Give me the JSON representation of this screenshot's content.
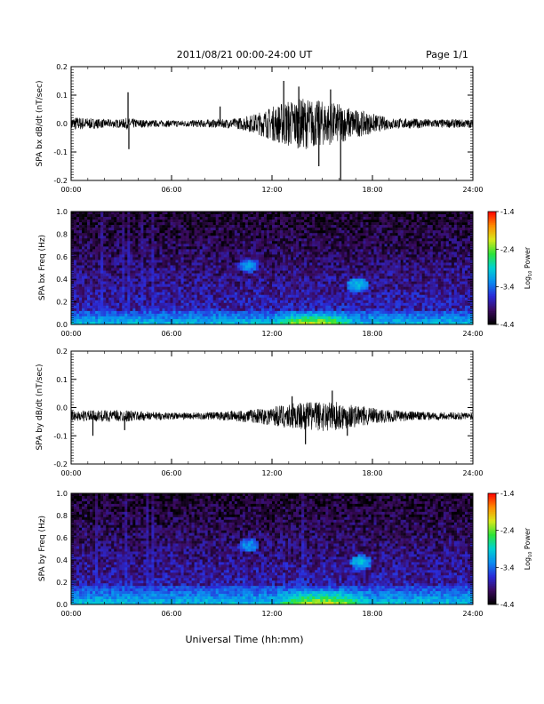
{
  "header": {
    "title": "2011/08/21  00:00-24:00 UT",
    "page": "Page 1/1"
  },
  "footer": {
    "xlabel": "Universal Time (hh:mm)"
  },
  "colors": {
    "trace": "#000000",
    "colormap": [
      "#000000",
      "#3a0a5e",
      "#2a2ad8",
      "#0a8cf0",
      "#00d2d2",
      "#2ee33a",
      "#d8e81a",
      "#ff8a00",
      "#ff0000"
    ]
  },
  "colorbar": {
    "label": "Log10 Power",
    "label_main": "Log",
    "label_sub": "10",
    "label_rest": " Power",
    "range": [
      -4.4,
      -1.4
    ],
    "ticks": [
      "-1.4",
      "-2.4",
      "-3.4",
      "-4.4"
    ]
  },
  "chart_data": [
    {
      "type": "line",
      "id": "bx-dbdt",
      "ylabel": "SPA bx dB/dt (nT/sec)",
      "x_range_hours": [
        0,
        24
      ],
      "xticks": [
        "00:00",
        "06:00",
        "12:00",
        "18:00",
        "24:00"
      ],
      "ylim": [
        -0.2,
        0.2
      ],
      "yticks": [
        "0.2",
        "0.1",
        "0.0",
        "-0.1",
        "-0.2"
      ],
      "envelope": {
        "hours": [
          0,
          1,
          2,
          3,
          3.3,
          4,
          5,
          6,
          7,
          8,
          9,
          10,
          11,
          12,
          13,
          14,
          15,
          16,
          17,
          18,
          19,
          20,
          21,
          22,
          23,
          24
        ],
        "amplitude": [
          0.025,
          0.02,
          0.015,
          0.015,
          0.02,
          0.015,
          0.012,
          0.012,
          0.012,
          0.014,
          0.015,
          0.02,
          0.035,
          0.06,
          0.085,
          0.09,
          0.08,
          0.07,
          0.05,
          0.035,
          0.02,
          0.018,
          0.017,
          0.015,
          0.015,
          0.015
        ]
      },
      "spikes": [
        {
          "hour": 3.4,
          "value": 0.11
        },
        {
          "hour": 3.45,
          "value": -0.09
        },
        {
          "hour": 8.9,
          "value": 0.06
        },
        {
          "hour": 12.7,
          "value": 0.15
        },
        {
          "hour": 13.6,
          "value": 0.13
        },
        {
          "hour": 14.8,
          "value": -0.15
        },
        {
          "hour": 15.5,
          "value": 0.12
        },
        {
          "hour": 16.1,
          "value": -0.21
        }
      ]
    },
    {
      "type": "heatmap",
      "id": "bx-freq",
      "ylabel": "SPA bx Freq (Hz)",
      "x_range_hours": [
        0,
        24
      ],
      "xticks": [
        "00:00",
        "06:00",
        "12:00",
        "18:00",
        "24:00"
      ],
      "ylim": [
        0,
        1.0
      ],
      "yticks": [
        "1.0",
        "0.8",
        "0.6",
        "0.4",
        "0.2",
        "0.0"
      ],
      "value_range": [
        -4.4,
        -1.4
      ],
      "features": [
        {
          "kind": "low-frequency band",
          "hours": [
            0,
            24
          ],
          "freq_max_hz": 0.08,
          "peak_hours": [
            12,
            17
          ],
          "peak_log_power": -2.6
        },
        {
          "kind": "emission blob",
          "hour": 10.6,
          "freq_hz": 0.52,
          "log_power": -3.2
        },
        {
          "kind": "emission blob",
          "hour": 17.1,
          "freq_hz": 0.35,
          "log_power": -3.0
        },
        {
          "kind": "vertical streaks",
          "hours": [
            1.8,
            3.1,
            3.4,
            4.3,
            4.9
          ]
        }
      ]
    },
    {
      "type": "line",
      "id": "by-dbdt",
      "ylabel": "SPA by dB/dt (nT/sec)",
      "x_range_hours": [
        0,
        24
      ],
      "xticks": [
        "00:00",
        "06:00",
        "12:00",
        "18:00",
        "24:00"
      ],
      "ylim": [
        -0.2,
        0.2
      ],
      "yticks": [
        "0.2",
        "0.1",
        "0.0",
        "-0.1",
        "-0.2"
      ],
      "baseline": -0.03,
      "envelope": {
        "hours": [
          0,
          1,
          2,
          3,
          4,
          5,
          6,
          7,
          8,
          9,
          10,
          11,
          12,
          13,
          14,
          15,
          16,
          17,
          18,
          19,
          20,
          21,
          22,
          23,
          24
        ],
        "amplitude": [
          0.018,
          0.02,
          0.02,
          0.022,
          0.018,
          0.015,
          0.012,
          0.012,
          0.013,
          0.015,
          0.02,
          0.025,
          0.035,
          0.045,
          0.05,
          0.055,
          0.05,
          0.04,
          0.03,
          0.022,
          0.018,
          0.015,
          0.014,
          0.013,
          0.013
        ]
      },
      "spikes": [
        {
          "hour": 1.3,
          "value": -0.1
        },
        {
          "hour": 3.2,
          "value": -0.08
        },
        {
          "hour": 13.2,
          "value": 0.04
        },
        {
          "hour": 14.0,
          "value": -0.13
        },
        {
          "hour": 15.6,
          "value": 0.06
        },
        {
          "hour": 16.5,
          "value": -0.1
        }
      ]
    },
    {
      "type": "heatmap",
      "id": "by-freq",
      "ylabel": "SPA by Freq (Hz)",
      "x_range_hours": [
        0,
        24
      ],
      "xticks": [
        "00:00",
        "06:00",
        "12:00",
        "18:00",
        "24:00"
      ],
      "ylim": [
        0,
        1.0
      ],
      "yticks": [
        "1.0",
        "0.8",
        "0.6",
        "0.4",
        "0.2",
        "0.0"
      ],
      "value_range": [
        -4.4,
        -1.4
      ],
      "features": [
        {
          "kind": "low-frequency band",
          "hours": [
            0,
            24
          ],
          "freq_max_hz": 0.1,
          "peak_hours": [
            12,
            18
          ],
          "peak_log_power": -2.7
        },
        {
          "kind": "emission blob",
          "hour": 10.6,
          "freq_hz": 0.53,
          "log_power": -3.2
        },
        {
          "kind": "emission blob",
          "hour": 17.3,
          "freq_hz": 0.38,
          "log_power": -3.0
        },
        {
          "kind": "vertical streaks",
          "hours": [
            1.5,
            3.3,
            4.6,
            4.9,
            13.9
          ]
        }
      ]
    }
  ]
}
